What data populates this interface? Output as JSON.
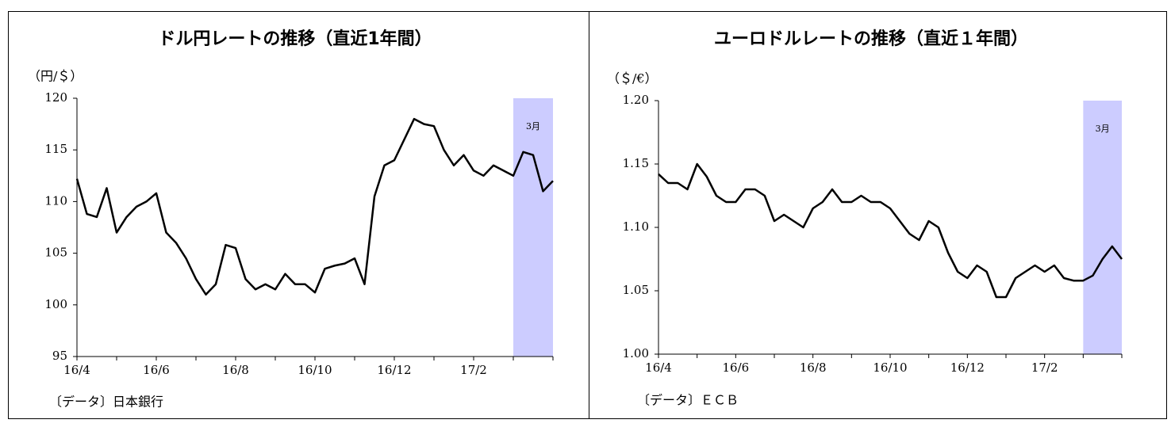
{
  "chart_data": [
    {
      "type": "line",
      "title": "ドル円レートの推移（直近1年間）",
      "y_label": "（円/＄）",
      "source": "〔データ〕日本銀行",
      "categories": [
        "16/4",
        null,
        null,
        null,
        null,
        null,
        null,
        null,
        "16/6",
        null,
        null,
        null,
        null,
        null,
        null,
        null,
        "16/8",
        null,
        null,
        null,
        null,
        null,
        null,
        null,
        "16/10",
        null,
        null,
        null,
        null,
        null,
        null,
        null,
        "16/12",
        null,
        null,
        null,
        null,
        null,
        null,
        null,
        "17/2",
        null,
        null,
        null,
        null,
        null,
        null,
        null,
        null
      ],
      "values": [
        112.2,
        108.8,
        108.5,
        111.3,
        107,
        108.5,
        109.5,
        110,
        110.8,
        107,
        106,
        104.5,
        102.5,
        101,
        102,
        105.8,
        105.5,
        102.5,
        101.5,
        102,
        101.5,
        103,
        102,
        102,
        101.2,
        103.5,
        103.8,
        104,
        104.5,
        102,
        110.5,
        113.5,
        114,
        116,
        118,
        117.5,
        117.3,
        115,
        113.5,
        114.5,
        113,
        112.5,
        113.5,
        113,
        112.5,
        114.8,
        114.5,
        111,
        112
      ],
      "color": "#000000",
      "ylim": [
        95,
        120
      ],
      "yticks": [
        95,
        100,
        105,
        110,
        115,
        120
      ],
      "highlight": {
        "label": "3月",
        "start": 44,
        "end": 48,
        "color": "#ccccff"
      }
    },
    {
      "type": "line",
      "title": "ユーロドルレートの推移（直近１年間）",
      "y_label": "（＄/€）",
      "source": "〔データ〕ＥＣＢ",
      "categories": [
        "16/4",
        null,
        null,
        null,
        null,
        null,
        null,
        null,
        "16/6",
        null,
        null,
        null,
        null,
        null,
        null,
        null,
        "16/8",
        null,
        null,
        null,
        null,
        null,
        null,
        null,
        "16/10",
        null,
        null,
        null,
        null,
        null,
        null,
        null,
        "16/12",
        null,
        null,
        null,
        null,
        null,
        null,
        null,
        "17/2",
        null,
        null,
        null,
        null,
        null,
        null,
        null,
        null
      ],
      "values": [
        1.142,
        1.135,
        1.135,
        1.13,
        1.15,
        1.14,
        1.125,
        1.12,
        1.12,
        1.13,
        1.13,
        1.125,
        1.105,
        1.11,
        1.105,
        1.1,
        1.115,
        1.12,
        1.13,
        1.12,
        1.12,
        1.125,
        1.12,
        1.12,
        1.115,
        1.105,
        1.095,
        1.09,
        1.105,
        1.1,
        1.08,
        1.065,
        1.06,
        1.07,
        1.065,
        1.045,
        1.045,
        1.06,
        1.065,
        1.07,
        1.065,
        1.07,
        1.06,
        1.058,
        1.058,
        1.062,
        1.075,
        1.085,
        1.075
      ],
      "color": "#000000",
      "ylim": [
        1.0,
        1.2
      ],
      "yticks": [
        {
          "value": 1.0,
          "label": "1.00"
        },
        1.05,
        {
          "value": 1.1,
          "label": "1.10"
        },
        1.15,
        {
          "value": 1.2,
          "label": "1.20"
        }
      ],
      "highlight": {
        "label": "3月",
        "start": 44,
        "end": 48,
        "color": "#ccccff"
      }
    }
  ]
}
